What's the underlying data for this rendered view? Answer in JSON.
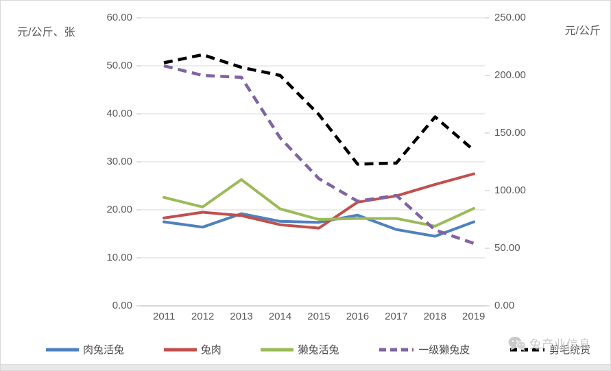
{
  "watermark": {
    "text": "兔产业信息",
    "icon": "wechat-icon",
    "color": "#c9c9c9"
  },
  "chart_data": {
    "type": "line",
    "title": "",
    "categories": [
      "2011",
      "2012",
      "2013",
      "2014",
      "2015",
      "2016",
      "2017",
      "2018",
      "2019"
    ],
    "series": [
      {
        "name": "肉兔活兔",
        "axis": "left",
        "color": "#4F81BD",
        "dash": "solid",
        "values": [
          17.5,
          16.4,
          19.2,
          17.6,
          17.4,
          18.9,
          15.9,
          14.5,
          17.5
        ]
      },
      {
        "name": "兔肉",
        "axis": "left",
        "color": "#C0504D",
        "dash": "solid",
        "values": [
          18.3,
          19.5,
          18.8,
          16.9,
          16.2,
          21.6,
          22.9,
          25.3,
          27.5
        ]
      },
      {
        "name": "獭兔活兔",
        "axis": "left",
        "color": "#9BBB59",
        "dash": "solid",
        "values": [
          22.6,
          20.6,
          26.3,
          20.2,
          18.0,
          18.2,
          18.2,
          16.6,
          20.3
        ]
      },
      {
        "name": "一级獭兔皮",
        "axis": "left",
        "color": "#8064A2",
        "dash": "dashed",
        "values": [
          50.0,
          48.0,
          47.6,
          35.0,
          26.5,
          21.8,
          23.0,
          15.8,
          13.0
        ]
      },
      {
        "name": "剪毛统货",
        "axis": "right",
        "color": "#000000",
        "dash": "dashed",
        "values": [
          211,
          218,
          207,
          200,
          166,
          123,
          124,
          164,
          135
        ]
      }
    ],
    "left_axis": {
      "label": "元/公斤、张",
      "min": 0,
      "max": 60,
      "step": 10,
      "ticks": [
        "60.00",
        "50.00",
        "40.00",
        "30.00",
        "20.00",
        "10.00",
        "0.00"
      ]
    },
    "right_axis": {
      "label": "元/公斤",
      "min": 0,
      "max": 250,
      "step": 50,
      "ticks": [
        "250.00",
        "200.00",
        "150.00",
        "100.00",
        "50.00",
        "0.00"
      ]
    },
    "x_axis": {
      "label": ""
    },
    "grid": true,
    "legend_position": "bottom",
    "gridline_color": "#d9d9d9"
  }
}
